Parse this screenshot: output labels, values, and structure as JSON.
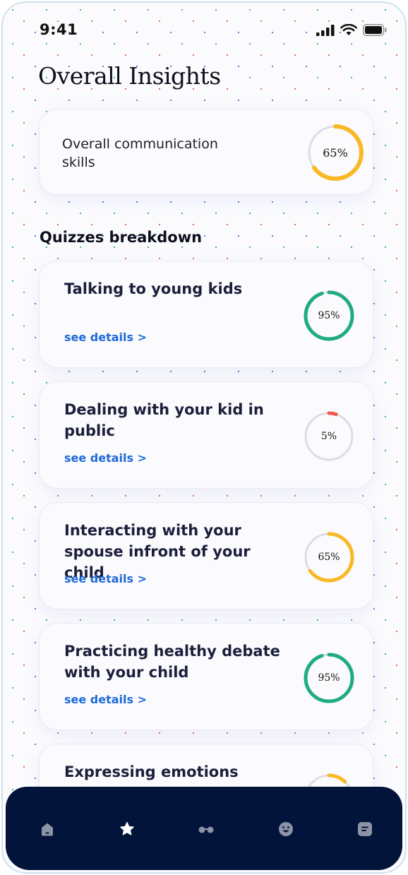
{
  "status_bar": {
    "time": "9:41"
  },
  "header": {
    "title": "Overall Insights"
  },
  "overall": {
    "label": "Overall communication skills",
    "percent": 65,
    "percent_text": "65%",
    "color": "#f8b925"
  },
  "quizzes": {
    "section_title": "Quizzes breakdown",
    "link_label": "see details >",
    "items": [
      {
        "title": "Talking to young kids",
        "percent": 95,
        "percent_text": "95%",
        "color": "#1fac80"
      },
      {
        "title": "Dealing with your kid in public",
        "percent": 5,
        "percent_text": "5%",
        "color": "#ec5b50"
      },
      {
        "title": "Interacting with your spouse infront of your child",
        "percent": 65,
        "percent_text": "65%",
        "color": "#f8b925"
      },
      {
        "title": "Practicing healthy debate with your child",
        "percent": 95,
        "percent_text": "95%",
        "color": "#1fac80"
      },
      {
        "title": "Expressing emotions",
        "percent": null,
        "percent_text": "",
        "color": "#f8b925"
      }
    ]
  },
  "tabbar": {
    "items": [
      {
        "icon": "home-icon",
        "active": false
      },
      {
        "icon": "star-icon",
        "active": true
      },
      {
        "icon": "glasses-icon",
        "active": false
      },
      {
        "icon": "emoji-icon",
        "active": false
      },
      {
        "icon": "notes-icon",
        "active": false
      }
    ]
  },
  "colors": {
    "track": "#dedde3",
    "nav_bg": "#03143a",
    "link": "#1e6ad8",
    "nav_icon": "#8c93a6",
    "nav_icon_active": "#ffffff"
  }
}
